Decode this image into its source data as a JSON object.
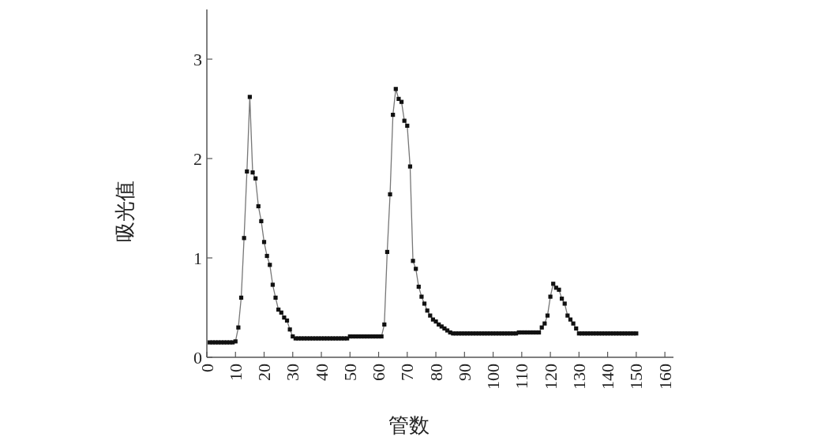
{
  "chart_data": {
    "type": "line",
    "xlabel": "管数",
    "ylabel": "吸光值",
    "xlim": [
      0,
      163
    ],
    "ylim": [
      0,
      3.5
    ],
    "xticks": [
      0,
      10,
      20,
      30,
      40,
      50,
      60,
      70,
      80,
      90,
      100,
      110,
      120,
      130,
      140,
      150,
      160
    ],
    "yticks": [
      0,
      1,
      2,
      3
    ],
    "grid": false,
    "marker": "square",
    "line_style": "solid",
    "series": [
      {
        "color": "#111111",
        "x": [
          1,
          2,
          3,
          4,
          5,
          6,
          7,
          8,
          9,
          10,
          11,
          12,
          13,
          14,
          15,
          16,
          17,
          18,
          19,
          20,
          21,
          22,
          23,
          24,
          25,
          26,
          27,
          28,
          29,
          30,
          31,
          32,
          33,
          34,
          35,
          36,
          37,
          38,
          39,
          40,
          41,
          42,
          43,
          44,
          45,
          46,
          47,
          48,
          49,
          50,
          51,
          52,
          53,
          54,
          55,
          56,
          57,
          58,
          59,
          60,
          61,
          62,
          63,
          64,
          65,
          66,
          67,
          68,
          69,
          70,
          71,
          72,
          73,
          74,
          75,
          76,
          77,
          78,
          79,
          80,
          81,
          82,
          83,
          84,
          85,
          86,
          87,
          88,
          89,
          90,
          91,
          92,
          93,
          94,
          95,
          96,
          97,
          98,
          99,
          100,
          101,
          102,
          103,
          104,
          105,
          106,
          107,
          108,
          109,
          110,
          111,
          112,
          113,
          114,
          115,
          116,
          117,
          118,
          119,
          120,
          121,
          122,
          123,
          124,
          125,
          126,
          127,
          128,
          129,
          130,
          131,
          132,
          133,
          134,
          135,
          136,
          137,
          138,
          139,
          140,
          141,
          142,
          143,
          144,
          145,
          146,
          147,
          148,
          149,
          150
        ],
        "values": [
          0.15,
          0.15,
          0.15,
          0.15,
          0.15,
          0.15,
          0.15,
          0.15,
          0.15,
          0.16,
          0.3,
          0.6,
          1.2,
          1.87,
          2.62,
          1.86,
          1.8,
          1.52,
          1.37,
          1.16,
          1.02,
          0.93,
          0.73,
          0.6,
          0.48,
          0.45,
          0.4,
          0.37,
          0.28,
          0.21,
          0.19,
          0.19,
          0.19,
          0.19,
          0.19,
          0.19,
          0.19,
          0.19,
          0.19,
          0.19,
          0.19,
          0.19,
          0.19,
          0.19,
          0.19,
          0.19,
          0.19,
          0.19,
          0.19,
          0.21,
          0.21,
          0.21,
          0.21,
          0.21,
          0.21,
          0.21,
          0.21,
          0.21,
          0.21,
          0.21,
          0.21,
          0.33,
          1.06,
          1.64,
          2.44,
          2.7,
          2.6,
          2.57,
          2.38,
          2.33,
          1.92,
          0.97,
          0.89,
          0.71,
          0.61,
          0.54,
          0.47,
          0.42,
          0.38,
          0.36,
          0.33,
          0.31,
          0.29,
          0.27,
          0.25,
          0.24,
          0.24,
          0.24,
          0.24,
          0.24,
          0.24,
          0.24,
          0.24,
          0.24,
          0.24,
          0.24,
          0.24,
          0.24,
          0.24,
          0.24,
          0.24,
          0.24,
          0.24,
          0.24,
          0.24,
          0.24,
          0.24,
          0.24,
          0.25,
          0.25,
          0.25,
          0.25,
          0.25,
          0.25,
          0.25,
          0.25,
          0.3,
          0.34,
          0.42,
          0.61,
          0.74,
          0.7,
          0.68,
          0.59,
          0.54,
          0.42,
          0.38,
          0.34,
          0.29,
          0.24,
          0.24,
          0.24,
          0.24,
          0.24,
          0.24,
          0.24,
          0.24,
          0.24,
          0.24,
          0.24,
          0.24,
          0.24,
          0.24,
          0.24,
          0.24,
          0.24,
          0.24,
          0.24,
          0.24,
          0.24
        ]
      }
    ]
  }
}
